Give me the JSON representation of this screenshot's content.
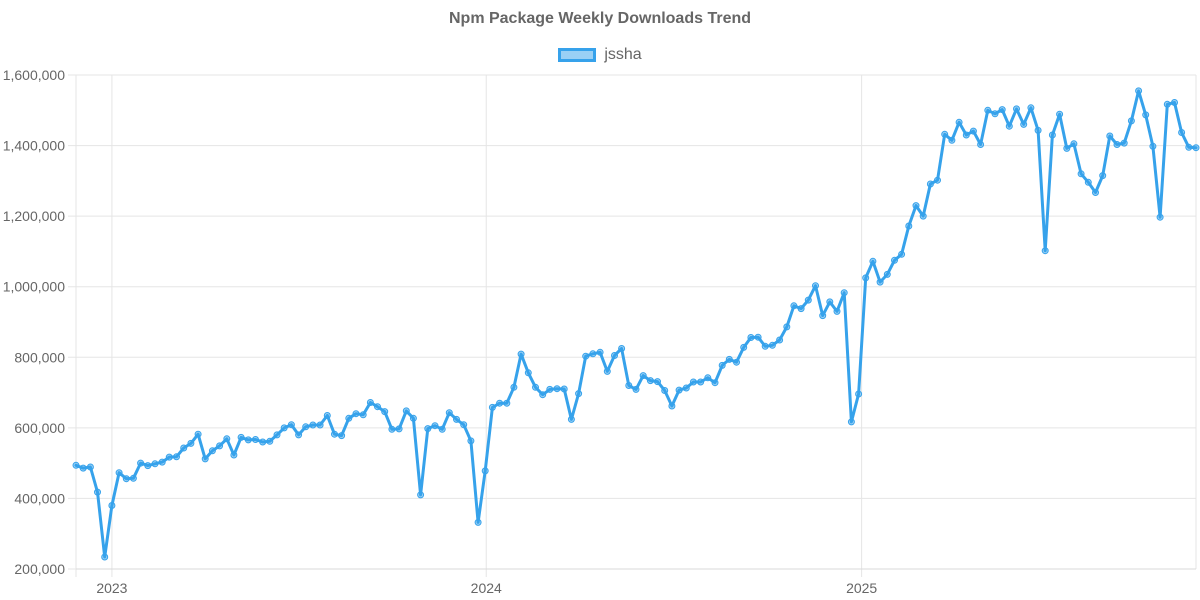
{
  "chart_data": {
    "type": "line",
    "title": "Npm Package Weekly Downloads Trend",
    "xlabel": "",
    "ylabel": "",
    "ylim": [
      200000,
      1600000
    ],
    "yticks": [
      200000,
      400000,
      600000,
      800000,
      1000000,
      1200000,
      1400000,
      1600000
    ],
    "xticks": [
      {
        "label": "2023",
        "date": "2023-01-01"
      },
      {
        "label": "2024",
        "date": "2024-01-01"
      },
      {
        "label": "2025",
        "date": "2025-01-01"
      }
    ],
    "x_start": "2022-11-27",
    "x_end": "2025-11-23",
    "grid": true,
    "legend_position": "top",
    "colors": {
      "line": "#36a2eb",
      "fill": "rgba(54,162,235,0.5)",
      "grid": "#e5e5e5",
      "text": "#666666"
    },
    "series": [
      {
        "name": "jssha",
        "x": [
          "2022-11-27",
          "2022-12-04",
          "2022-12-11",
          "2022-12-18",
          "2022-12-25",
          "2023-01-01",
          "2023-01-08",
          "2023-01-15",
          "2023-01-22",
          "2023-01-29",
          "2023-02-05",
          "2023-02-12",
          "2023-02-19",
          "2023-02-26",
          "2023-03-05",
          "2023-03-12",
          "2023-03-19",
          "2023-03-26",
          "2023-04-02",
          "2023-04-09",
          "2023-04-16",
          "2023-04-23",
          "2023-04-30",
          "2023-05-07",
          "2023-05-14",
          "2023-05-21",
          "2023-05-28",
          "2023-06-04",
          "2023-06-11",
          "2023-06-18",
          "2023-06-25",
          "2023-07-02",
          "2023-07-09",
          "2023-07-16",
          "2023-07-23",
          "2023-07-30",
          "2023-08-06",
          "2023-08-13",
          "2023-08-20",
          "2023-08-27",
          "2023-09-03",
          "2023-09-10",
          "2023-09-17",
          "2023-09-24",
          "2023-10-01",
          "2023-10-08",
          "2023-10-15",
          "2023-10-22",
          "2023-10-29",
          "2023-11-05",
          "2023-11-12",
          "2023-11-19",
          "2023-11-26",
          "2023-12-03",
          "2023-12-10",
          "2023-12-17",
          "2023-12-24",
          "2023-12-31",
          "2024-01-07",
          "2024-01-14",
          "2024-01-21",
          "2024-01-28",
          "2024-02-04",
          "2024-02-11",
          "2024-02-18",
          "2024-02-25",
          "2024-03-03",
          "2024-03-10",
          "2024-03-17",
          "2024-03-24",
          "2024-03-31",
          "2024-04-07",
          "2024-04-14",
          "2024-04-21",
          "2024-04-28",
          "2024-05-05",
          "2024-05-12",
          "2024-05-19",
          "2024-05-26",
          "2024-06-02",
          "2024-06-09",
          "2024-06-16",
          "2024-06-23",
          "2024-06-30",
          "2024-07-07",
          "2024-07-14",
          "2024-07-21",
          "2024-07-28",
          "2024-08-04",
          "2024-08-11",
          "2024-08-18",
          "2024-08-25",
          "2024-09-01",
          "2024-09-08",
          "2024-09-15",
          "2024-09-22",
          "2024-09-29",
          "2024-10-06",
          "2024-10-13",
          "2024-10-20",
          "2024-10-27",
          "2024-11-03",
          "2024-11-10",
          "2024-11-17",
          "2024-11-24",
          "2024-12-01",
          "2024-12-08",
          "2024-12-15",
          "2024-12-22",
          "2024-12-29",
          "2025-01-05",
          "2025-01-12",
          "2025-01-19",
          "2025-01-26",
          "2025-02-02",
          "2025-02-09",
          "2025-02-16",
          "2025-02-23",
          "2025-03-02",
          "2025-03-09",
          "2025-03-16",
          "2025-03-23",
          "2025-03-30",
          "2025-04-06",
          "2025-04-13",
          "2025-04-20",
          "2025-04-27",
          "2025-05-04",
          "2025-05-11",
          "2025-05-18",
          "2025-05-25",
          "2025-06-01",
          "2025-06-08",
          "2025-06-15",
          "2025-06-22",
          "2025-06-29",
          "2025-07-06",
          "2025-07-13",
          "2025-07-20",
          "2025-07-27",
          "2025-08-03",
          "2025-08-10",
          "2025-08-17",
          "2025-08-24",
          "2025-08-31",
          "2025-09-07",
          "2025-09-14",
          "2025-09-21",
          "2025-09-28",
          "2025-10-05",
          "2025-10-12",
          "2025-10-19",
          "2025-10-26",
          "2025-11-02",
          "2025-11-09",
          "2025-11-16",
          "2025-11-23"
        ],
        "values": [
          494000,
          486000,
          489000,
          418000,
          234000,
          380000,
          473000,
          456000,
          457000,
          500000,
          493000,
          498000,
          503000,
          517000,
          518000,
          543000,
          556000,
          582000,
          512000,
          535000,
          549000,
          569000,
          523000,
          573000,
          566000,
          567000,
          560000,
          562000,
          580000,
          600000,
          609000,
          580000,
          603000,
          608000,
          608000,
          635000,
          582000,
          578000,
          627000,
          640000,
          637000,
          672000,
          660000,
          646000,
          596000,
          597000,
          648000,
          627000,
          410000,
          598000,
          606000,
          596000,
          643000,
          624000,
          609000,
          563000,
          332000,
          478000,
          658000,
          670000,
          670000,
          715000,
          809000,
          756000,
          715000,
          694000,
          709000,
          711000,
          710000,
          624000,
          697000,
          803000,
          810000,
          814000,
          760000,
          805000,
          825000,
          720000,
          709000,
          748000,
          734000,
          731000,
          706000,
          662000,
          707000,
          713000,
          730000,
          730000,
          742000,
          728000,
          777000,
          794000,
          786000,
          828000,
          856000,
          857000,
          831000,
          834000,
          849000,
          886000,
          946000,
          938000,
          962000,
          1003000,
          918000,
          957000,
          930000,
          983000,
          617000,
          696000,
          1025000,
          1072000,
          1013000,
          1035000,
          1075000,
          1092000,
          1172000,
          1230000,
          1200000,
          1291000,
          1302000,
          1432000,
          1415000,
          1466000,
          1430000,
          1441000,
          1403000,
          1500000,
          1490000,
          1502000,
          1455000,
          1504000,
          1460000,
          1507000,
          1443000,
          1102000,
          1430000,
          1489000,
          1392000,
          1405000,
          1320000,
          1296000,
          1267000,
          1315000,
          1427000,
          1403000,
          1407000,
          1470000,
          1555000,
          1487000,
          1398000,
          1197000,
          1517000,
          1522000,
          1437000,
          1395000,
          1394000
        ]
      }
    ]
  }
}
